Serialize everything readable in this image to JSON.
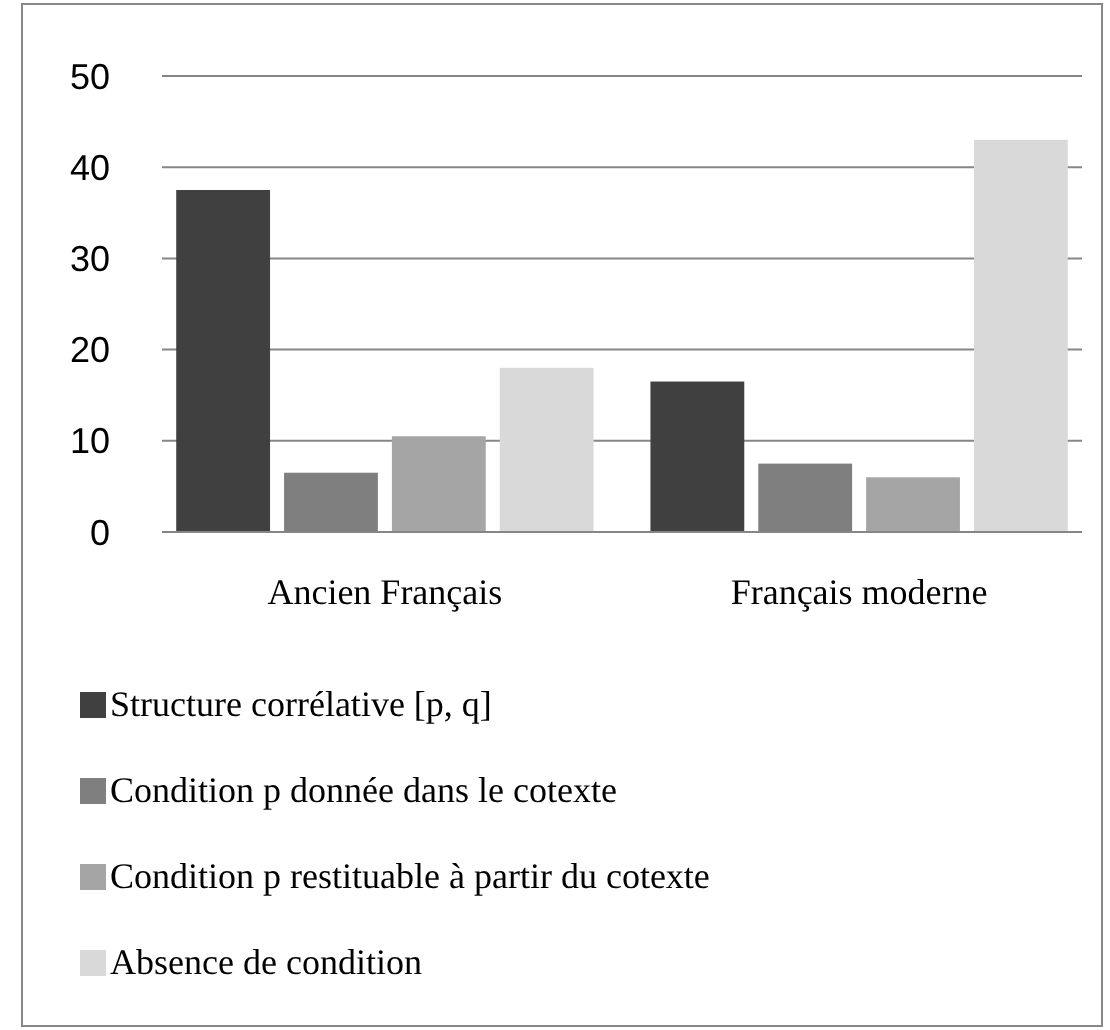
{
  "chart_data": {
    "type": "bar",
    "categories": [
      "Ancien Français",
      "Français moderne"
    ],
    "series": [
      {
        "name": "Structure corrélative [p, q]",
        "color": "#404040",
        "values": [
          37.5,
          16.5
        ]
      },
      {
        "name": "Condition p donnée dans le cotexte",
        "color": "#7f7f7f",
        "values": [
          6.5,
          7.5
        ]
      },
      {
        "name": "Condition p restituable à partir du cotexte",
        "color": "#a5a5a5",
        "values": [
          10.5,
          6
        ]
      },
      {
        "name": "Absence de condition",
        "color": "#d9d9d9",
        "values": [
          18,
          43
        ]
      }
    ],
    "ylim": [
      0,
      50
    ],
    "yticks": [
      0,
      10,
      20,
      30,
      40,
      50
    ],
    "grid": "y",
    "legend": "bottom"
  }
}
